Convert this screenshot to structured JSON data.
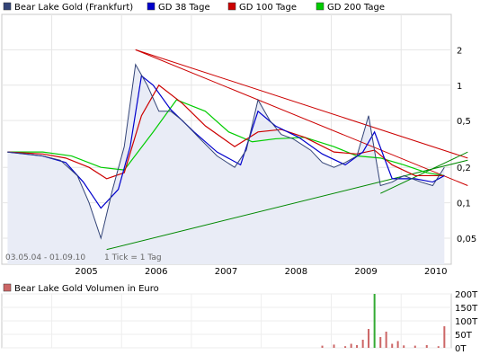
{
  "chart_data": [
    {
      "type": "line",
      "legend": [
        {
          "name": "Bear Lake Gold (Frankfurt)",
          "color": "#334477"
        },
        {
          "name": "GD 38 Tage",
          "color": "#0000cc"
        },
        {
          "name": "GD 100 Tage",
          "color": "#cc0000"
        },
        {
          "name": "GD 200 Tage",
          "color": "#00cc00"
        }
      ],
      "x_labels": [
        "2005",
        "2006",
        "2007",
        "2008",
        "2009",
        "2010"
      ],
      "y_scale": "log",
      "y_ticks": [
        {
          "value": 2,
          "label": "2"
        },
        {
          "value": 1,
          "label": "1"
        },
        {
          "value": 0.5,
          "label": "0,5"
        },
        {
          "value": 0.2,
          "label": "0,2"
        },
        {
          "value": 0.1,
          "label": "0,1"
        },
        {
          "value": 0.05,
          "label": "0,05"
        }
      ],
      "ylim": [
        0.03,
        4.0
      ],
      "date_range_label": "03.05.04 - 01.09.10",
      "tick_note": "1 Tick = 1 Tag",
      "series": [
        {
          "name": "Bear Lake Gold (Frankfurt)",
          "x": [
            "2004-05",
            "2004-08",
            "2004-11",
            "2005-02",
            "2005-05",
            "2005-07",
            "2005-09",
            "2005-11",
            "2006-01",
            "2006-03",
            "2006-05",
            "2006-07",
            "2006-09",
            "2006-11",
            "2007-02",
            "2007-05",
            "2007-08",
            "2007-10",
            "2007-12",
            "2008-02",
            "2008-04",
            "2008-06",
            "2008-09",
            "2008-11",
            "2009-01",
            "2009-03",
            "2009-05",
            "2009-07",
            "2009-09",
            "2009-11",
            "2010-01",
            "2010-04",
            "2010-06",
            "2010-08"
          ],
          "values": [
            0.27,
            0.26,
            0.25,
            0.23,
            0.17,
            0.1,
            0.05,
            0.13,
            0.3,
            1.5,
            1.0,
            0.6,
            0.6,
            0.5,
            0.35,
            0.25,
            0.2,
            0.28,
            0.75,
            0.5,
            0.38,
            0.35,
            0.28,
            0.22,
            0.2,
            0.22,
            0.25,
            0.55,
            0.14,
            0.15,
            0.17,
            0.15,
            0.14,
            0.2
          ]
        },
        {
          "name": "GD 38 Tage",
          "x": [
            "2004-05",
            "2004-11",
            "2005-03",
            "2005-06",
            "2005-09",
            "2005-12",
            "2006-02",
            "2006-04",
            "2006-06",
            "2006-09",
            "2007-01",
            "2007-05",
            "2007-09",
            "2007-12",
            "2008-03",
            "2008-07",
            "2008-11",
            "2009-03",
            "2009-06",
            "2009-08",
            "2009-11",
            "2010-03",
            "2010-06",
            "2010-08"
          ],
          "values": [
            0.27,
            0.25,
            0.22,
            0.15,
            0.09,
            0.13,
            0.3,
            1.2,
            1.0,
            0.62,
            0.4,
            0.27,
            0.21,
            0.6,
            0.45,
            0.36,
            0.26,
            0.21,
            0.27,
            0.4,
            0.16,
            0.16,
            0.15,
            0.17
          ]
        },
        {
          "name": "GD 100 Tage",
          "x": [
            "2004-05",
            "2004-11",
            "2005-03",
            "2005-07",
            "2005-10",
            "2006-01",
            "2006-04",
            "2006-07",
            "2006-11",
            "2007-03",
            "2007-08",
            "2007-12",
            "2008-04",
            "2008-08",
            "2009-01",
            "2009-05",
            "2009-08",
            "2009-11",
            "2010-03",
            "2010-08"
          ],
          "values": [
            0.27,
            0.26,
            0.24,
            0.2,
            0.16,
            0.18,
            0.55,
            1.0,
            0.7,
            0.45,
            0.3,
            0.4,
            0.42,
            0.36,
            0.27,
            0.26,
            0.28,
            0.21,
            0.17,
            0.17
          ]
        },
        {
          "name": "GD 200 Tage",
          "x": [
            "2004-05",
            "2004-11",
            "2005-04",
            "2005-09",
            "2006-01",
            "2006-06",
            "2006-10",
            "2007-03",
            "2007-07",
            "2007-11",
            "2008-03",
            "2008-08",
            "2009-01",
            "2009-05",
            "2009-09",
            "2010-01",
            "2010-05",
            "2010-08"
          ],
          "values": [
            0.27,
            0.27,
            0.25,
            0.2,
            0.19,
            0.4,
            0.75,
            0.6,
            0.4,
            0.33,
            0.35,
            0.36,
            0.3,
            0.25,
            0.24,
            0.21,
            0.18,
            0.17
          ]
        }
      ],
      "trendlines": [
        {
          "color": "#cc0000",
          "from": [
            "2006-03",
            2.0
          ],
          "to": [
            "2010-12",
            0.24
          ]
        },
        {
          "color": "#cc0000",
          "from": [
            "2006-03",
            2.0
          ],
          "to": [
            "2010-12",
            0.14
          ]
        },
        {
          "color": "#008800",
          "from": [
            "2005-10",
            0.04
          ],
          "to": [
            "2010-12",
            0.23
          ]
        },
        {
          "color": "#008800",
          "from": [
            "2009-09",
            0.12
          ],
          "to": [
            "2010-12",
            0.27
          ]
        }
      ]
    },
    {
      "type": "bar",
      "legend": [
        {
          "name": "Bear Lake Gold Volumen in Euro",
          "color": "#cc6666"
        }
      ],
      "y_ticks": [
        {
          "value": 200000,
          "label": "200T"
        },
        {
          "value": 150000,
          "label": "150T"
        },
        {
          "value": 100000,
          "label": "100T"
        },
        {
          "value": 50000,
          "label": "50T"
        },
        {
          "value": 0,
          "label": "0T"
        }
      ],
      "ylim": [
        0,
        200000
      ],
      "x": [
        "2008-11",
        "2009-01",
        "2009-03",
        "2009-04",
        "2009-05",
        "2009-06",
        "2009-07",
        "2009-08",
        "2009-09",
        "2009-10",
        "2009-11",
        "2009-12",
        "2010-01",
        "2010-03",
        "2010-05",
        "2010-07",
        "2010-08"
      ],
      "values": [
        8000,
        12000,
        6000,
        15000,
        10000,
        30000,
        70000,
        200000,
        40000,
        60000,
        15000,
        25000,
        9000,
        8000,
        10000,
        6000,
        80000
      ]
    }
  ]
}
